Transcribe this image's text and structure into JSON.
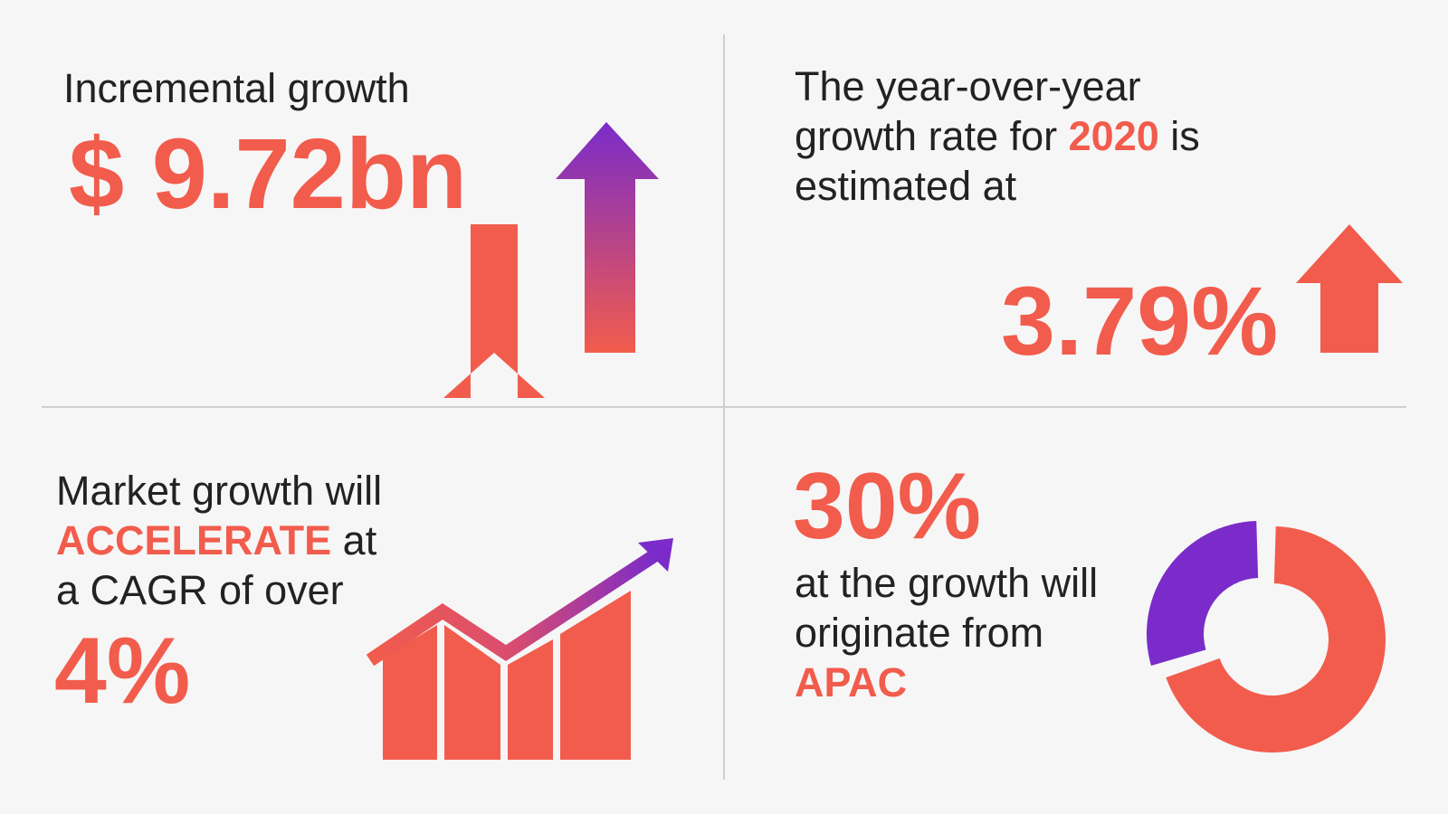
{
  "incremental": {
    "label": "Incremental growth",
    "value": "$ 9.72bn"
  },
  "yoy": {
    "line1": "The year-over-year",
    "line2_pre": "growth rate for ",
    "year": "2020",
    "line2_post": " is",
    "line3": "estimated at",
    "value": "3.79%"
  },
  "cagr": {
    "line1": "Market growth will",
    "accent": "ACCELERATE",
    "line2_post": " at",
    "line3": "a CAGR of over",
    "value": "4%"
  },
  "apac": {
    "value": "30%",
    "line1": "at the growth will",
    "line2": "originate from",
    "region": "APAC",
    "share": 30
  },
  "colors": {
    "accent": "#f25c4c",
    "purple": "#7a2bc9",
    "text": "#222222",
    "divider": "#cfcfcf",
    "background": "#f6f6f6"
  },
  "icons": [
    "two-up-arrows-icon",
    "up-arrow-icon",
    "rising-bar-chart-icon",
    "donut-chart-icon"
  ]
}
